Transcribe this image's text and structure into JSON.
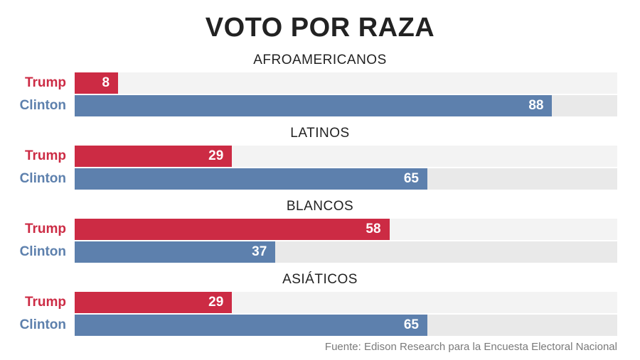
{
  "title": "VOTO POR RAZA",
  "source": "Fuente: Edison Research para la Encuesta Electoral Nacional",
  "colors": {
    "trump": "#cc2b44",
    "clinton": "#5d80ad"
  },
  "chart_data": {
    "type": "bar",
    "orientation": "horizontal",
    "title": "VOTO POR RAZA",
    "xlim": [
      0,
      100
    ],
    "grid": false,
    "legend": "none",
    "groups": [
      {
        "title": "AFROAMERICANOS",
        "rows": [
          {
            "label": "Trump",
            "value": 8
          },
          {
            "label": "Clinton",
            "value": 88
          }
        ]
      },
      {
        "title": "LATINOS",
        "rows": [
          {
            "label": "Trump",
            "value": 29
          },
          {
            "label": "Clinton",
            "value": 65
          }
        ]
      },
      {
        "title": "BLANCOS",
        "rows": [
          {
            "label": "Trump",
            "value": 58
          },
          {
            "label": "Clinton",
            "value": 37
          }
        ]
      },
      {
        "title": "ASIÁTICOS",
        "rows": [
          {
            "label": "Trump",
            "value": 29
          },
          {
            "label": "Clinton",
            "value": 65
          }
        ]
      }
    ]
  }
}
